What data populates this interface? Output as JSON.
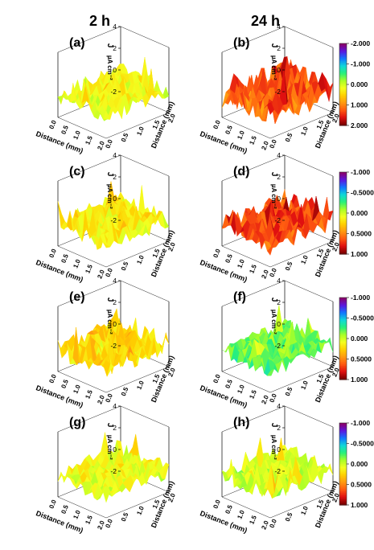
{
  "figure": {
    "column_titles": [
      "2 h",
      "24 h"
    ],
    "colors": {
      "gradient": [
        "#7a0000",
        "#e01010",
        "#ff5a10",
        "#ff9a10",
        "#ffd000",
        "#f4ff20",
        "#a8ff28",
        "#28f07a",
        "#10d8d8",
        "#1077ff",
        "#5a18e0",
        "#8a006a"
      ],
      "text": "#000000",
      "box": "#222222"
    }
  },
  "chart_data": [
    {
      "panel": "(a)",
      "type": "surface3d",
      "z_ticks": [
        "-2",
        "0",
        "2",
        "4"
      ],
      "zlabel": "J",
      "zunit": "µA cm⁻²",
      "xlabel": "Distance (mm)",
      "ylabel": "Distance (mm)",
      "x_ticks": [
        "0.0",
        "0.5",
        "1.0",
        "1.5",
        "2.0"
      ],
      "y_ticks": [
        "0.0",
        "0.5",
        "1.0",
        "1.5",
        "2.0"
      ],
      "colorbar": null,
      "tone": 0.46,
      "amplitude": 0.55
    },
    {
      "panel": "(b)",
      "type": "surface3d",
      "z_ticks": [
        "-2",
        "0",
        "2",
        "4"
      ],
      "zlabel": "J",
      "zunit": "µA cm⁻²",
      "xlabel": "Distance (mm)",
      "ylabel": "Distance (mm)",
      "x_ticks": [
        "0.0",
        "0.5",
        "1.0",
        "1.5",
        "2.0"
      ],
      "y_ticks": [
        "0.0",
        "0.5",
        "1.0",
        "1.5",
        "2.0"
      ],
      "colorbar": {
        "ticks": [
          "-2.000",
          "-1.000",
          "0.000",
          "1.000",
          "2.000"
        ]
      },
      "tone": 0.2,
      "amplitude": 0.8
    },
    {
      "panel": "(c)",
      "type": "surface3d",
      "z_ticks": [
        "-2",
        "0",
        "2",
        "4"
      ],
      "zlabel": "J",
      "zunit": "µA cm⁻²",
      "xlabel": "Distance (mm)",
      "ylabel": "Distance (mm)",
      "x_ticks": [
        "0.0",
        "0.5",
        "1.0",
        "1.5",
        "2.0"
      ],
      "y_ticks": [
        "0.0",
        "0.5",
        "1.0",
        "1.5",
        "2.0"
      ],
      "colorbar": null,
      "tone": 0.44,
      "amplitude": 0.5
    },
    {
      "panel": "(d)",
      "type": "surface3d",
      "z_ticks": [
        "-2",
        "0",
        "2",
        "4"
      ],
      "zlabel": "J",
      "zunit": "µA cm⁻²",
      "xlabel": "Distance (mm)",
      "ylabel": "Distance (mm)",
      "x_ticks": [
        "0.0",
        "0.5",
        "1.0",
        "1.5",
        "2.0"
      ],
      "y_ticks": [
        "0.0",
        "0.5",
        "1.0",
        "1.5",
        "2.0"
      ],
      "colorbar": {
        "ticks": [
          "-1.000",
          "-0.5000",
          "0.000",
          "0.5000",
          "1.000"
        ]
      },
      "tone": 0.17,
      "amplitude": 0.6
    },
    {
      "panel": "(e)",
      "type": "surface3d",
      "z_ticks": [
        "-2",
        "0",
        "2",
        "4"
      ],
      "zlabel": "J",
      "zunit": "µA cm⁻²",
      "xlabel": "Distance (mm)",
      "ylabel": "Distance (mm)",
      "x_ticks": [
        "0.0",
        "0.5",
        "1.0",
        "1.5",
        "2.0"
      ],
      "y_ticks": [
        "0.0",
        "0.5",
        "1.0",
        "1.5",
        "2.0"
      ],
      "colorbar": null,
      "tone": 0.4,
      "amplitude": 0.65
    },
    {
      "panel": "(f)",
      "type": "surface3d",
      "z_ticks": [
        "-2",
        "0",
        "2",
        "4"
      ],
      "zlabel": "J",
      "zunit": "µA cm⁻²",
      "xlabel": "Distance (mm)",
      "ylabel": "Distance (mm)",
      "x_ticks": [
        "0.0",
        "0.5",
        "1.0",
        "1.5",
        "2.0"
      ],
      "y_ticks": [
        "0.0",
        "0.5",
        "1.0",
        "1.5",
        "2.0"
      ],
      "colorbar": {
        "ticks": [
          "-1.000",
          "-0.5000",
          "0.000",
          "0.5000",
          "1.000"
        ]
      },
      "tone": 0.6,
      "amplitude": 0.45
    },
    {
      "panel": "(g)",
      "type": "surface3d",
      "z_ticks": [
        "-2",
        "0",
        "2",
        "4"
      ],
      "zlabel": "J",
      "zunit": "µA cm⁻²",
      "xlabel": "Distance (mm)",
      "ylabel": "Distance (mm)",
      "x_ticks": [
        "0.0",
        "0.5",
        "1.0",
        "1.5",
        "2.0"
      ],
      "y_ticks": [
        "0.0",
        "0.5",
        "1.0",
        "1.5",
        "2.0"
      ],
      "colorbar": null,
      "tone": 0.46,
      "amplitude": 0.5
    },
    {
      "panel": "(h)",
      "type": "surface3d",
      "z_ticks": [
        "-2",
        "0",
        "2",
        "4"
      ],
      "zlabel": "J",
      "zunit": "µA cm⁻²",
      "xlabel": "Distance (mm)",
      "ylabel": "Distance (mm)",
      "x_ticks": [
        "0.0",
        "0.5",
        "1.0",
        "1.5",
        "2.0"
      ],
      "y_ticks": [
        "0.0",
        "0.5",
        "1.0",
        "1.5",
        "2.0"
      ],
      "colorbar": {
        "ticks": [
          "-1.000",
          "-0.5000",
          "0.000",
          "0.5000",
          "1.000"
        ]
      },
      "tone": 0.5,
      "amplitude": 0.5
    }
  ]
}
